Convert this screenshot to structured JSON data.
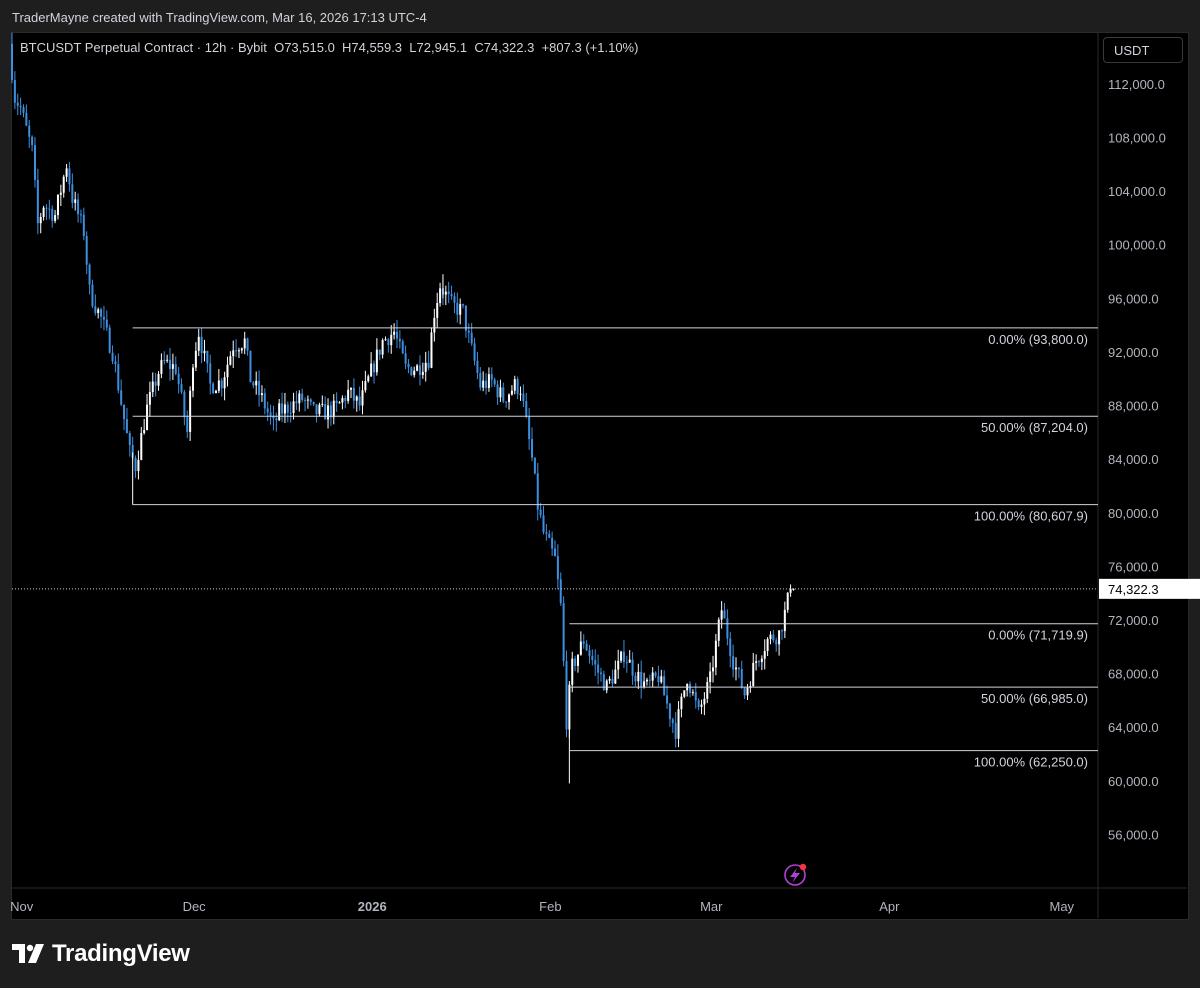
{
  "header": {
    "created_by": "TraderMayne created with TradingView.com, Mar 16, 2026 17:13 UTC-4"
  },
  "legend": {
    "symbol": "BTCUSDT Perpetual Contract · 12h · Bybit",
    "open": "O73,515.0",
    "high": "H74,559.3",
    "low": "L72,945.1",
    "close": "C74,322.3",
    "change": "+807.3 (+1.10%)"
  },
  "currency": "USDT",
  "brand": "TradingView",
  "colors": {
    "background": "#000000",
    "up_candle": "#ffffff",
    "down_candle": "#3d8fe0",
    "fib_line": "#d1d4dc",
    "last_price_badge": "#ffffff",
    "alert_icon": "#b041d8"
  },
  "chart_data": {
    "type": "candlestick",
    "timeframe": "12h",
    "y_axis": {
      "range": [
        52000,
        115800
      ],
      "ticks": [
        56000,
        60000,
        64000,
        68000,
        72000,
        76000,
        80000,
        84000,
        88000,
        92000,
        96000,
        100000,
        104000,
        108000,
        112000
      ],
      "tick_labels": [
        "56,000.0",
        "60,000.0",
        "64,000.0",
        "68,000.0",
        "72,000.0",
        "76,000.0",
        "80,000.0",
        "84,000.0",
        "88,000.0",
        "92,000.0",
        "96,000.0",
        "100,000.0",
        "104,000.0",
        "108,000.0",
        "112,000.0"
      ]
    },
    "x_axis": {
      "start_date": "2025-10-31",
      "end_date": "2026-05-08",
      "ticks": [
        {
          "date": "2025-11-01",
          "label": "Nov",
          "bold": false
        },
        {
          "date": "2025-12-01",
          "label": "Dec",
          "bold": false
        },
        {
          "date": "2026-01-01",
          "label": "2026",
          "bold": true
        },
        {
          "date": "2026-02-01",
          "label": "Feb",
          "bold": false
        },
        {
          "date": "2026-03-01",
          "label": "Mar",
          "bold": false
        },
        {
          "date": "2026-04-01",
          "label": "Apr",
          "bold": false
        },
        {
          "date": "2026-05-01",
          "label": "May",
          "bold": false
        }
      ]
    },
    "last_price": {
      "value": 74322.3,
      "label": "74,322.3"
    },
    "fib_retracements": [
      {
        "start_date": "2025-11-21",
        "levels": [
          {
            "price": 93800.0,
            "label": "0.00% (93,800.0)"
          },
          {
            "price": 87204.0,
            "label": "50.00% (87,204.0)"
          },
          {
            "price": 80607.9,
            "label": "100.00% (80,607.9)"
          }
        ]
      },
      {
        "start_date": "2026-02-05",
        "levels": [
          {
            "price": 71719.9,
            "label": "0.00% (71,719.9)"
          },
          {
            "price": 66985.0,
            "label": "50.00% (66,985.0)"
          },
          {
            "price": 62250.0,
            "label": "100.00% (62,250.0)"
          }
        ]
      }
    ],
    "price_path": [
      [
        "2025-10-31",
        115000
      ],
      [
        "2025-11-01",
        111000
      ],
      [
        "2025-11-02",
        110200
      ],
      [
        "2025-11-04",
        107000
      ],
      [
        "2025-11-05",
        101500
      ],
      [
        "2025-11-06",
        103000
      ],
      [
        "2025-11-08",
        102200
      ],
      [
        "2025-11-10",
        106000
      ],
      [
        "2025-11-11",
        103500
      ],
      [
        "2025-11-13",
        101000
      ],
      [
        "2025-11-14",
        96500
      ],
      [
        "2025-11-16",
        94500
      ],
      [
        "2025-11-18",
        92000
      ],
      [
        "2025-11-19",
        89500
      ],
      [
        "2025-11-21",
        84500
      ],
      [
        "2025-11-22",
        83500
      ],
      [
        "2025-11-24",
        87800
      ],
      [
        "2025-11-26",
        90500
      ],
      [
        "2025-11-27",
        91200
      ],
      [
        "2025-11-29",
        90800
      ],
      [
        "2025-12-01",
        86000
      ],
      [
        "2025-12-02",
        91500
      ],
      [
        "2025-12-03",
        93500
      ],
      [
        "2025-12-05",
        89500
      ],
      [
        "2025-12-07",
        89800
      ],
      [
        "2025-12-09",
        92500
      ],
      [
        "2025-12-11",
        92800
      ],
      [
        "2025-12-12",
        90000
      ],
      [
        "2025-12-14",
        88500
      ],
      [
        "2025-12-16",
        86500
      ],
      [
        "2025-12-17",
        87500
      ],
      [
        "2025-12-19",
        88000
      ],
      [
        "2025-12-21",
        88500
      ],
      [
        "2025-12-23",
        87500
      ],
      [
        "2025-12-25",
        87500
      ],
      [
        "2025-12-27",
        87800
      ],
      [
        "2025-12-29",
        89000
      ],
      [
        "2025-12-31",
        88000
      ],
      [
        "2026-01-02",
        90500
      ],
      [
        "2026-01-04",
        92800
      ],
      [
        "2026-01-06",
        93500
      ],
      [
        "2026-01-08",
        90800
      ],
      [
        "2026-01-10",
        90800
      ],
      [
        "2026-01-12",
        91500
      ],
      [
        "2026-01-13",
        95000
      ],
      [
        "2026-01-14",
        97000
      ],
      [
        "2026-01-16",
        95500
      ],
      [
        "2026-01-18",
        95000
      ],
      [
        "2026-01-19",
        93000
      ],
      [
        "2026-01-21",
        89500
      ],
      [
        "2026-01-23",
        89800
      ],
      [
        "2026-01-25",
        88500
      ],
      [
        "2026-01-27",
        89500
      ],
      [
        "2026-01-28",
        89300
      ],
      [
        "2026-01-30",
        84000
      ],
      [
        "2026-01-31",
        80500
      ],
      [
        "2026-02-01",
        78500
      ],
      [
        "2026-02-03",
        76500
      ],
      [
        "2026-02-04",
        73000
      ],
      [
        "2026-02-05",
        64500
      ],
      [
        "2026-02-06",
        68500
      ],
      [
        "2026-02-08",
        70500
      ],
      [
        "2026-02-10",
        68500
      ],
      [
        "2026-02-12",
        67000
      ],
      [
        "2026-02-14",
        68500
      ],
      [
        "2026-02-15",
        69500
      ],
      [
        "2026-02-17",
        68000
      ],
      [
        "2026-02-19",
        67000
      ],
      [
        "2026-02-21",
        67800
      ],
      [
        "2026-02-23",
        65000
      ],
      [
        "2026-02-24",
        63800
      ],
      [
        "2026-02-26",
        67800
      ],
      [
        "2026-02-28",
        65000
      ],
      [
        "2026-03-02",
        67500
      ],
      [
        "2026-03-04",
        72800
      ],
      [
        "2026-03-06",
        69000
      ],
      [
        "2026-03-08",
        66500
      ],
      [
        "2026-03-10",
        69000
      ],
      [
        "2026-03-12",
        70500
      ],
      [
        "2026-03-14",
        71000
      ],
      [
        "2026-03-15",
        72500
      ],
      [
        "2026-03-16",
        74322
      ]
    ]
  }
}
